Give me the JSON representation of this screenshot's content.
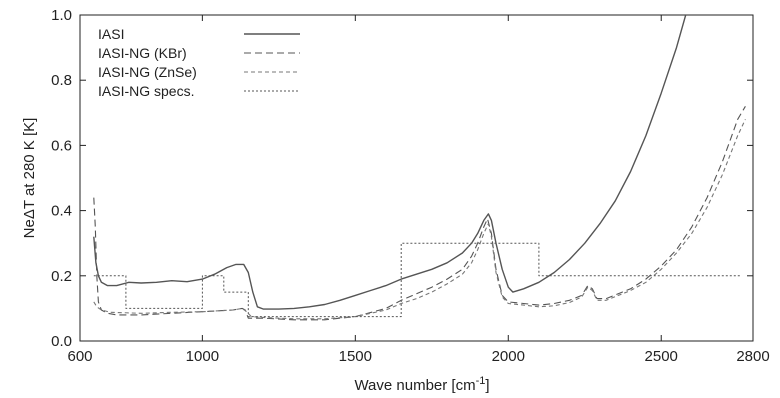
{
  "chart_data": {
    "type": "line",
    "xlabel": "Wave number [cm",
    "xlabel_sup": "-1",
    "xlabel_end": "]",
    "ylabel": "NeΔT at 280 K  [K]",
    "xlim": [
      600,
      2800
    ],
    "ylim": [
      0.0,
      1.0
    ],
    "x_ticks": [
      600,
      1000,
      1500,
      2000,
      2500,
      2800
    ],
    "x_tick_labels": [
      "600",
      "1000",
      "1500",
      "2000",
      "2500",
      "2800"
    ],
    "y_ticks": [
      0.0,
      0.2,
      0.4,
      0.6,
      0.8,
      1.0
    ],
    "y_tick_labels": [
      "0.0",
      "0.2",
      "0.4",
      "0.6",
      "0.8",
      "1.0"
    ],
    "grid": false,
    "legend_position": "top-left",
    "colors": {
      "axis": "#222222",
      "solid": "#555555",
      "dashed_kbr": "#555555",
      "dashed_znse": "#777777",
      "dotted": "#555555"
    },
    "series": [
      {
        "name": "IASI",
        "style": "solid",
        "points": [
          [
            645,
            0.32
          ],
          [
            652,
            0.24
          ],
          [
            660,
            0.2
          ],
          [
            670,
            0.18
          ],
          [
            690,
            0.17
          ],
          [
            720,
            0.17
          ],
          [
            760,
            0.18
          ],
          [
            800,
            0.178
          ],
          [
            850,
            0.18
          ],
          [
            900,
            0.185
          ],
          [
            950,
            0.182
          ],
          [
            1000,
            0.19
          ],
          [
            1040,
            0.205
          ],
          [
            1080,
            0.225
          ],
          [
            1110,
            0.235
          ],
          [
            1135,
            0.235
          ],
          [
            1150,
            0.21
          ],
          [
            1165,
            0.15
          ],
          [
            1180,
            0.105
          ],
          [
            1200,
            0.098
          ],
          [
            1250,
            0.098
          ],
          [
            1300,
            0.1
          ],
          [
            1350,
            0.105
          ],
          [
            1400,
            0.112
          ],
          [
            1450,
            0.125
          ],
          [
            1500,
            0.14
          ],
          [
            1550,
            0.155
          ],
          [
            1600,
            0.17
          ],
          [
            1650,
            0.19
          ],
          [
            1700,
            0.205
          ],
          [
            1750,
            0.22
          ],
          [
            1800,
            0.24
          ],
          [
            1850,
            0.27
          ],
          [
            1880,
            0.3
          ],
          [
            1900,
            0.33
          ],
          [
            1920,
            0.37
          ],
          [
            1935,
            0.39
          ],
          [
            1945,
            0.37
          ],
          [
            1960,
            0.3
          ],
          [
            1980,
            0.22
          ],
          [
            2000,
            0.165
          ],
          [
            2015,
            0.15
          ],
          [
            2050,
            0.16
          ],
          [
            2100,
            0.18
          ],
          [
            2150,
            0.21
          ],
          [
            2200,
            0.25
          ],
          [
            2250,
            0.3
          ],
          [
            2300,
            0.36
          ],
          [
            2350,
            0.43
          ],
          [
            2400,
            0.52
          ],
          [
            2450,
            0.63
          ],
          [
            2500,
            0.76
          ],
          [
            2550,
            0.9
          ],
          [
            2580,
            1.0
          ]
        ]
      },
      {
        "name": "IASI-NG (KBr)",
        "style": "dashed",
        "points": [
          [
            645,
            0.44
          ],
          [
            650,
            0.35
          ],
          [
            655,
            0.2
          ],
          [
            660,
            0.12
          ],
          [
            670,
            0.095
          ],
          [
            690,
            0.085
          ],
          [
            720,
            0.08
          ],
          [
            800,
            0.08
          ],
          [
            900,
            0.085
          ],
          [
            1000,
            0.09
          ],
          [
            1100,
            0.095
          ],
          [
            1130,
            0.1
          ],
          [
            1140,
            0.095
          ],
          [
            1150,
            0.07
          ],
          [
            1200,
            0.07
          ],
          [
            1300,
            0.065
          ],
          [
            1400,
            0.065
          ],
          [
            1500,
            0.075
          ],
          [
            1600,
            0.1
          ],
          [
            1650,
            0.125
          ],
          [
            1700,
            0.145
          ],
          [
            1750,
            0.165
          ],
          [
            1800,
            0.19
          ],
          [
            1850,
            0.22
          ],
          [
            1880,
            0.26
          ],
          [
            1900,
            0.3
          ],
          [
            1920,
            0.35
          ],
          [
            1932,
            0.375
          ],
          [
            1945,
            0.33
          ],
          [
            1960,
            0.22
          ],
          [
            1980,
            0.14
          ],
          [
            2000,
            0.12
          ],
          [
            2050,
            0.115
          ],
          [
            2100,
            0.11
          ],
          [
            2150,
            0.115
          ],
          [
            2200,
            0.125
          ],
          [
            2240,
            0.14
          ],
          [
            2260,
            0.17
          ],
          [
            2275,
            0.16
          ],
          [
            2290,
            0.13
          ],
          [
            2320,
            0.13
          ],
          [
            2400,
            0.16
          ],
          [
            2450,
            0.19
          ],
          [
            2500,
            0.23
          ],
          [
            2550,
            0.28
          ],
          [
            2600,
            0.35
          ],
          [
            2650,
            0.44
          ],
          [
            2700,
            0.55
          ],
          [
            2750,
            0.68
          ],
          [
            2775,
            0.72
          ]
        ]
      },
      {
        "name": "IASI-NG (ZnSe)",
        "style": "dashed",
        "points": [
          [
            645,
            0.12
          ],
          [
            655,
            0.105
          ],
          [
            670,
            0.095
          ],
          [
            700,
            0.088
          ],
          [
            800,
            0.085
          ],
          [
            900,
            0.088
          ],
          [
            1000,
            0.09
          ],
          [
            1100,
            0.095
          ],
          [
            1130,
            0.1
          ],
          [
            1145,
            0.09
          ],
          [
            1160,
            0.075
          ],
          [
            1200,
            0.072
          ],
          [
            1300,
            0.068
          ],
          [
            1400,
            0.068
          ],
          [
            1500,
            0.075
          ],
          [
            1600,
            0.095
          ],
          [
            1650,
            0.115
          ],
          [
            1700,
            0.13
          ],
          [
            1750,
            0.15
          ],
          [
            1800,
            0.175
          ],
          [
            1850,
            0.205
          ],
          [
            1880,
            0.24
          ],
          [
            1900,
            0.28
          ],
          [
            1920,
            0.33
          ],
          [
            1935,
            0.36
          ],
          [
            1945,
            0.32
          ],
          [
            1960,
            0.21
          ],
          [
            1980,
            0.135
          ],
          [
            2000,
            0.115
          ],
          [
            2050,
            0.11
          ],
          [
            2100,
            0.105
          ],
          [
            2150,
            0.108
          ],
          [
            2200,
            0.118
          ],
          [
            2240,
            0.135
          ],
          [
            2260,
            0.165
          ],
          [
            2275,
            0.155
          ],
          [
            2290,
            0.125
          ],
          [
            2320,
            0.125
          ],
          [
            2400,
            0.155
          ],
          [
            2450,
            0.18
          ],
          [
            2500,
            0.22
          ],
          [
            2550,
            0.27
          ],
          [
            2600,
            0.33
          ],
          [
            2650,
            0.41
          ],
          [
            2700,
            0.51
          ],
          [
            2750,
            0.63
          ],
          [
            2775,
            0.68
          ]
        ]
      },
      {
        "name": "IASI-NG specs.",
        "style": "dotted",
        "points": [
          [
            645,
            0.2
          ],
          [
            750,
            0.2
          ],
          [
            750,
            0.1
          ],
          [
            1000,
            0.1
          ],
          [
            1000,
            0.2
          ],
          [
            1070,
            0.2
          ],
          [
            1070,
            0.15
          ],
          [
            1150,
            0.15
          ],
          [
            1150,
            0.075
          ],
          [
            1650,
            0.075
          ],
          [
            1650,
            0.3
          ],
          [
            2100,
            0.3
          ],
          [
            2100,
            0.2
          ],
          [
            2760,
            0.2
          ]
        ]
      }
    ]
  }
}
